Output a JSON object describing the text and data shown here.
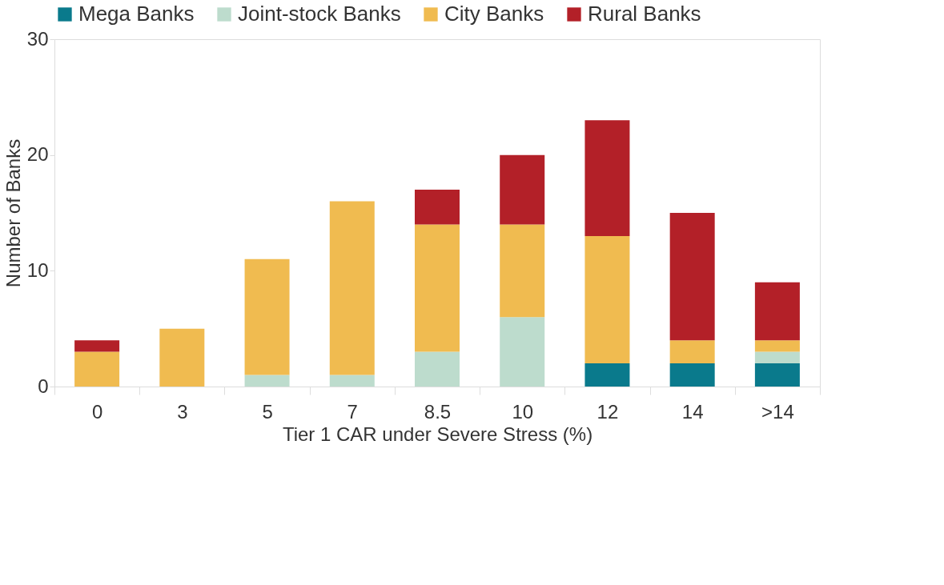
{
  "chart_data": {
    "type": "bar",
    "stacked": true,
    "xlabel": "Tier 1 CAR under Severe Stress (%)",
    "ylabel": "Number of Banks",
    "categories": [
      "0",
      "3",
      "5",
      "7",
      "8.5",
      "10",
      "12",
      "14",
      ">14"
    ],
    "series": [
      {
        "name": "Mega Banks",
        "color": "#0a7a8c",
        "values": [
          0,
          0,
          0,
          0,
          0,
          0,
          2,
          2,
          2
        ]
      },
      {
        "name": "Joint-stock Banks",
        "color": "#bddccd",
        "values": [
          0,
          0,
          1,
          1,
          3,
          6,
          0,
          0,
          1
        ]
      },
      {
        "name": "City Banks",
        "color": "#f0bb50",
        "values": [
          3,
          5,
          10,
          15,
          11,
          8,
          11,
          2,
          1
        ]
      },
      {
        "name": "Rural Banks",
        "color": "#b32028",
        "values": [
          1,
          0,
          0,
          0,
          3,
          6,
          10,
          11,
          5
        ]
      }
    ],
    "ylim": [
      0,
      30
    ],
    "yticks": [
      0,
      10,
      20,
      30
    ],
    "grid": false,
    "legend": "top"
  }
}
